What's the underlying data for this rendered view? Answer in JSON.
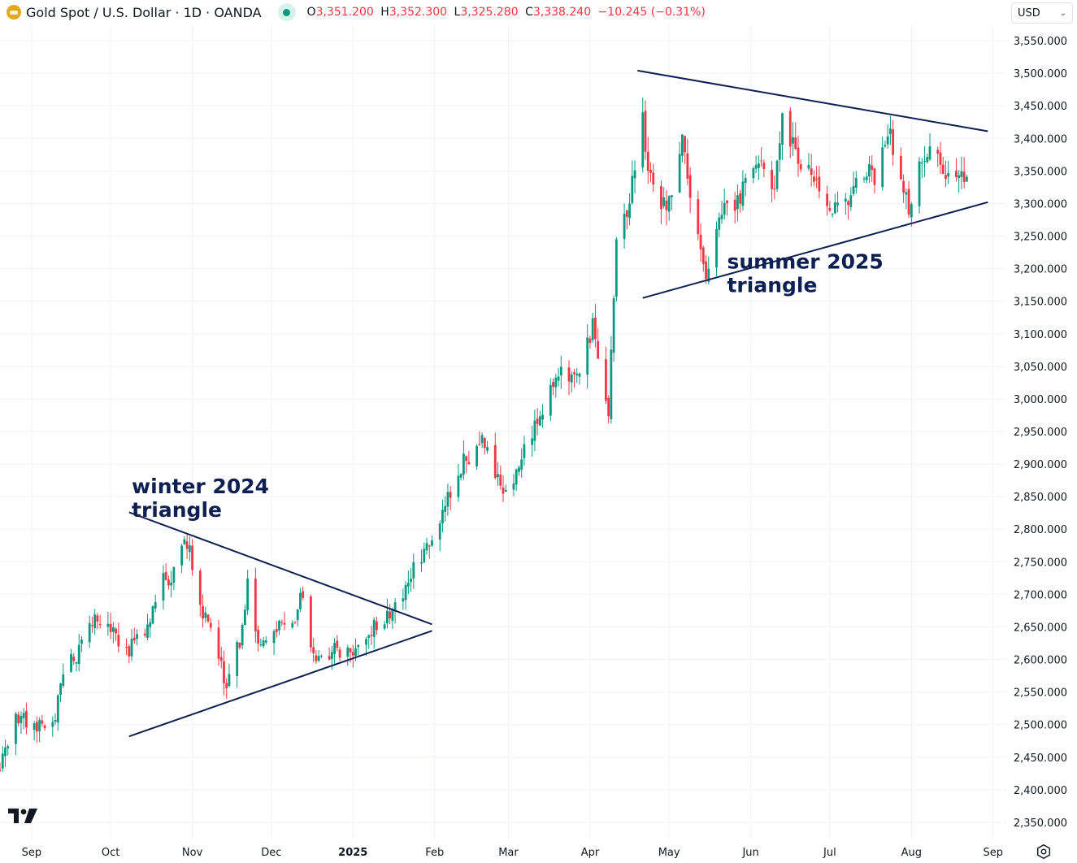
{
  "header": {
    "symbol": "Gold Spot / U.S. Dollar · 1D · OANDA",
    "ohlc": [
      {
        "k": "O",
        "v": "3,351.200"
      },
      {
        "k": "H",
        "v": "3,352.300"
      },
      {
        "k": "L",
        "v": "3,325.280"
      },
      {
        "k": "C",
        "v": "3,338.240"
      },
      {
        "k": "",
        "v": "−10.245 (−0.31%)"
      }
    ],
    "currency": "USD"
  },
  "colors": {
    "up": "#089981",
    "down": "#f23645",
    "trendline": "#0e1f51",
    "grid": "#f0f3fa",
    "text": "#131722"
  },
  "chart_data": {
    "type": "candlestick",
    "ylim": [
      2325,
      3575
    ],
    "y_ticks": [
      "2,350.000",
      "2,400.000",
      "2,450.000",
      "2,500.000",
      "2,550.000",
      "2,600.000",
      "2,650.000",
      "2,700.000",
      "2,750.000",
      "2,800.000",
      "2,850.000",
      "2,900.000",
      "2,950.000",
      "3,000.000",
      "3,050.000",
      "3,100.000",
      "3,150.000",
      "3,200.000",
      "3,250.000",
      "3,300.000",
      "3,350.000",
      "3,400.000",
      "3,450.000",
      "3,500.000",
      "3,550.000"
    ],
    "x_range": [
      "2024-08-20",
      "2025-09-06"
    ],
    "x_ticks": [
      {
        "label": "Sep",
        "date": "2024-09-01"
      },
      {
        "label": "Oct",
        "date": "2024-10-01"
      },
      {
        "label": "Nov",
        "date": "2024-11-01"
      },
      {
        "label": "Dec",
        "date": "2024-12-01"
      },
      {
        "label": "2025",
        "date": "2025-01-01"
      },
      {
        "label": "Feb",
        "date": "2025-02-01"
      },
      {
        "label": "Mar",
        "date": "2025-03-01"
      },
      {
        "label": "Apr",
        "date": "2025-04-01"
      },
      {
        "label": "May",
        "date": "2025-05-01"
      },
      {
        "label": "Jun",
        "date": "2025-06-01"
      },
      {
        "label": "Jul",
        "date": "2025-07-01"
      },
      {
        "label": "Aug",
        "date": "2025-08-01"
      },
      {
        "label": "Sep",
        "date": "2025-09-01"
      }
    ],
    "close_anchors": [
      [
        "2024-08-20",
        2440
      ],
      [
        "2024-08-26",
        2510
      ],
      [
        "2024-09-03",
        2500
      ],
      [
        "2024-09-09",
        2498
      ],
      [
        "2024-09-13",
        2578
      ],
      [
        "2024-09-20",
        2620
      ],
      [
        "2024-09-25",
        2660
      ],
      [
        "2024-10-01",
        2640
      ],
      [
        "2024-10-08",
        2612
      ],
      [
        "2024-10-14",
        2650
      ],
      [
        "2024-10-21",
        2720
      ],
      [
        "2024-10-25",
        2735
      ],
      [
        "2024-10-30",
        2780
      ],
      [
        "2024-11-01",
        2745
      ],
      [
        "2024-11-06",
        2660
      ],
      [
        "2024-11-14",
        2565
      ],
      [
        "2024-11-19",
        2630
      ],
      [
        "2024-11-22",
        2715
      ],
      [
        "2024-11-26",
        2620
      ],
      [
        "2024-12-03",
        2645
      ],
      [
        "2024-12-10",
        2652
      ],
      [
        "2024-12-12",
        2710
      ],
      [
        "2024-12-18",
        2590
      ],
      [
        "2024-12-24",
        2618
      ],
      [
        "2024-12-30",
        2610
      ],
      [
        "2025-01-06",
        2640
      ],
      [
        "2025-01-14",
        2670
      ],
      [
        "2025-01-20",
        2705
      ],
      [
        "2025-01-27",
        2760
      ],
      [
        "2025-02-03",
        2810
      ],
      [
        "2025-02-11",
        2900
      ],
      [
        "2025-02-20",
        2940
      ],
      [
        "2025-02-27",
        2850
      ],
      [
        "2025-03-06",
        2910
      ],
      [
        "2025-03-14",
        2980
      ],
      [
        "2025-03-20",
        3040
      ],
      [
        "2025-03-27",
        3025
      ],
      [
        "2025-04-02",
        3110
      ],
      [
        "2025-04-08",
        2980
      ],
      [
        "2025-04-11",
        3230
      ],
      [
        "2025-04-17",
        3330
      ],
      [
        "2025-04-21",
        3430
      ],
      [
        "2025-04-24",
        3330
      ],
      [
        "2025-04-30",
        3290
      ],
      [
        "2025-05-06",
        3410
      ],
      [
        "2025-05-09",
        3320
      ],
      [
        "2025-05-15",
        3190
      ],
      [
        "2025-05-20",
        3290
      ],
      [
        "2025-05-27",
        3300
      ],
      [
        "2025-06-03",
        3360
      ],
      [
        "2025-06-10",
        3330
      ],
      [
        "2025-06-13",
        3430
      ],
      [
        "2025-06-19",
        3370
      ],
      [
        "2025-06-25",
        3330
      ],
      [
        "2025-06-30",
        3290
      ],
      [
        "2025-07-08",
        3300
      ],
      [
        "2025-07-14",
        3350
      ],
      [
        "2025-07-18",
        3345
      ],
      [
        "2025-07-23",
        3420
      ],
      [
        "2025-07-31",
        3290
      ],
      [
        "2025-08-04",
        3370
      ],
      [
        "2025-08-08",
        3395
      ],
      [
        "2025-08-14",
        3335
      ],
      [
        "2025-08-20",
        3340
      ],
      [
        "2025-08-22",
        3338
      ]
    ],
    "trendlines": [
      {
        "from": [
          "2024-10-08",
          2826
        ],
        "to": [
          "2025-01-31",
          2654
        ]
      },
      {
        "from": [
          "2024-10-08",
          2482
        ],
        "to": [
          "2025-01-31",
          2644
        ]
      },
      {
        "from": [
          "2025-04-19",
          3504
        ],
        "to": [
          "2025-08-30",
          3411
        ]
      },
      {
        "from": [
          "2025-04-21",
          3155
        ],
        "to": [
          "2025-08-30",
          3302
        ]
      }
    ],
    "annotations": [
      {
        "lines": [
          "winter 2024",
          "triangle"
        ],
        "date": "2024-10-09",
        "price": 2855
      },
      {
        "lines": [
          "summer 2025",
          "triangle"
        ],
        "date": "2025-05-23",
        "price": 3200
      }
    ]
  }
}
